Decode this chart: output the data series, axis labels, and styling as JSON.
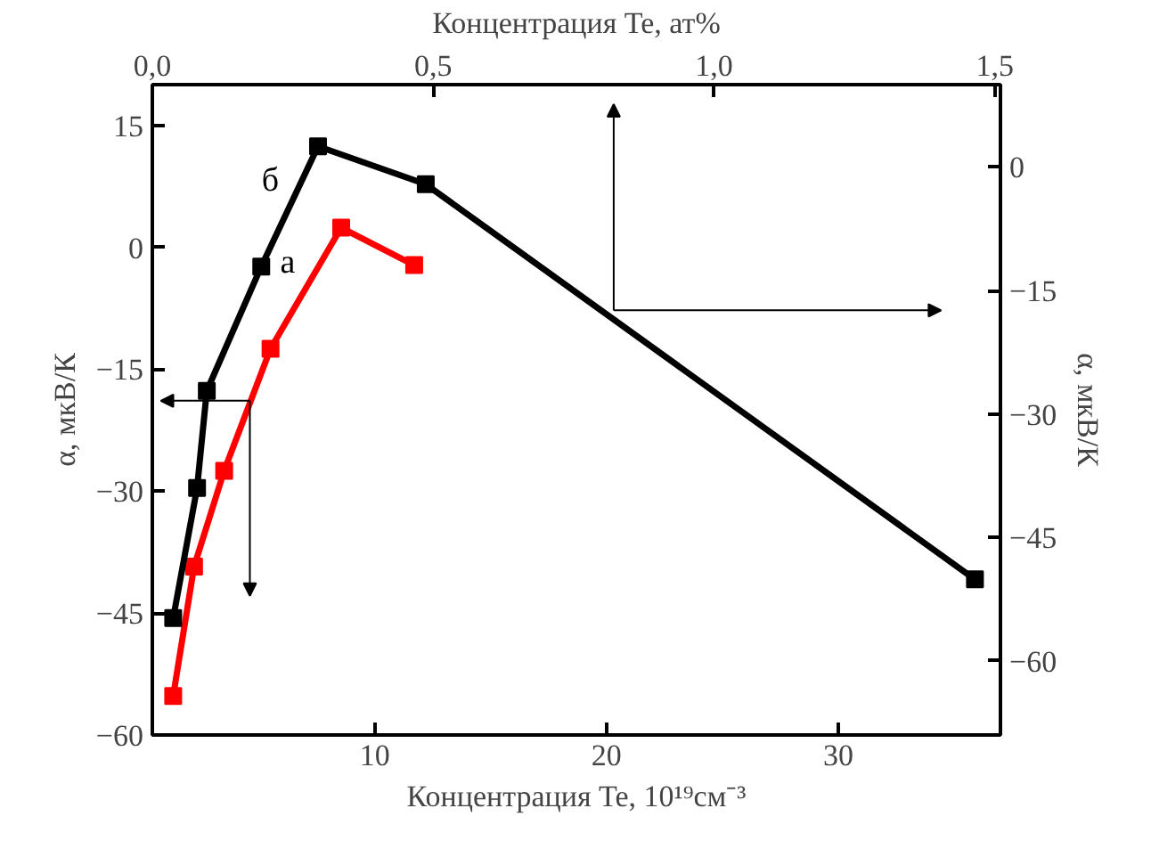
{
  "chart_data": {
    "type": "line",
    "xlabel": "Концентрация Te, 10¹⁹см⁻³",
    "x2label": "Концентрация Te, ат%",
    "ylabel": "α, мкВ/К",
    "y2label": "α, мкВ/К",
    "xlim": [
      0.4,
      37
    ],
    "xticks": [
      10,
      20,
      30
    ],
    "x2lim": [
      0,
      1.51
    ],
    "x2ticks": [
      {
        "value": 0,
        "label": "0,0"
      },
      {
        "value": 0.5,
        "label": "0,5"
      },
      {
        "value": 1,
        "label": "1,0"
      },
      {
        "value": 1.5,
        "label": "1,5"
      }
    ],
    "ylim": [
      -60,
      20
    ],
    "yticks": [
      -60,
      -45,
      -30,
      -15,
      0,
      15
    ],
    "y2lim": [
      -69,
      10
    ],
    "y2ticks": [
      -60,
      -45,
      -30,
      -15,
      0
    ],
    "marker": "square",
    "line_style": "solid",
    "grid": false,
    "series": [
      {
        "name": "а",
        "color": "#ff0000",
        "x": [
          1.3,
          2.2,
          3.5,
          5.5,
          8.55,
          11.7
        ],
        "values": [
          -55.2,
          -39.3,
          -27.5,
          -12.5,
          2.4,
          -2.2
        ]
      },
      {
        "name": "б",
        "color": "#000000",
        "axis": "y2",
        "x": [
          1.3,
          2.33,
          2.75,
          5.1,
          7.55,
          12.2,
          35.9
        ],
        "values": [
          -54.8,
          -39.0,
          -27.2,
          -12.1,
          2.5,
          -2.1,
          -50.1
        ]
      }
    ]
  }
}
